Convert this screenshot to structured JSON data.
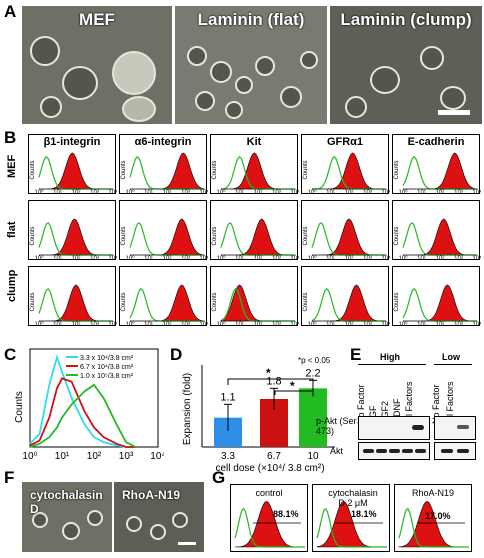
{
  "panels": {
    "A": {
      "label": "A",
      "images": [
        "MEF",
        "Laminin (flat)",
        "Laminin (clump)"
      ]
    },
    "B": {
      "label": "B",
      "columns": [
        "β1-integrin",
        "α6-integrin",
        "Kit",
        "GFRα1",
        "E-cadherin"
      ],
      "rows": [
        "MEF",
        "flat",
        "clump"
      ],
      "axis_ylabel": "Counts",
      "tick_labels": [
        "10⁰",
        "10¹",
        "10²",
        "10³",
        "10⁴"
      ]
    },
    "C": {
      "label": "C",
      "ylabel": "Counts",
      "legend": [
        "3.3 x 10⁴/3.8 cm²",
        "6.7 x 10⁴/3.8 cm²",
        "1.0 x 10⁵/3.8 cm²"
      ],
      "legend_colors": [
        "#33d9f0",
        "#cc1111",
        "#22bb22"
      ],
      "xticks": [
        "10⁰",
        "10¹",
        "10²",
        "10³",
        "10⁴"
      ]
    },
    "D": {
      "label": "D",
      "ylabel": "Expansion (fold)",
      "xlabel": "cell dose (×10⁴/ 3.8 cm²)",
      "significance": [
        "*",
        "*",
        "*p < 0.05"
      ]
    },
    "E": {
      "label": "E",
      "groups": [
        "High",
        "Low"
      ],
      "lanes_high": [
        "No Factor",
        "EGF",
        "FGF2",
        "GDNF",
        "All Factors"
      ],
      "lanes_low": [
        "No Factor",
        "All Factors"
      ],
      "blots": [
        "p-Akt (Ser 473)",
        "Akt"
      ]
    },
    "F": {
      "label": "F",
      "images": [
        "cytochalasin D",
        "RhoA-N19"
      ]
    },
    "G": {
      "label": "G",
      "plots": [
        {
          "title": "control",
          "percent": "88.1%"
        },
        {
          "title": "cytochalasin D 2 μM",
          "percent": "18.1%"
        },
        {
          "title": "RhoA-N19",
          "percent": "17.0%"
        }
      ]
    }
  },
  "chart_data": [
    {
      "type": "bar",
      "title": "",
      "categories": [
        "3.3",
        "6.7",
        "10"
      ],
      "values": [
        1.1,
        1.8,
        2.2
      ],
      "errors": [
        0.5,
        0.4,
        0.3
      ],
      "bar_colors": [
        "#2f8fe8",
        "#cc1111",
        "#22bb22"
      ],
      "data_labels": [
        "1.1",
        "1.8",
        "2.2"
      ],
      "ylabel": "Expansion (fold)",
      "xlabel": "cell dose (×10⁴/ 3.8 cm²)",
      "ylim": [
        0,
        3
      ]
    },
    {
      "type": "line",
      "title": "",
      "xscale": "log",
      "xlim": [
        1,
        10000
      ],
      "x": [
        1,
        2,
        4,
        7,
        10,
        20,
        50,
        100,
        200,
        500,
        1000,
        2000
      ],
      "series": [
        {
          "name": "3.3 x 10⁴/3.8 cm²",
          "values": [
            2,
            8,
            38,
            55,
            46,
            30,
            14,
            6,
            3,
            1,
            0,
            0
          ]
        },
        {
          "name": "6.7 x 10⁴/3.8 cm²",
          "values": [
            1,
            4,
            18,
            36,
            42,
            40,
            22,
            12,
            6,
            2,
            0,
            0
          ]
        },
        {
          "name": "1.0 x 10⁵/3.8 cm²",
          "values": [
            0,
            2,
            6,
            12,
            18,
            26,
            34,
            38,
            30,
            14,
            3,
            0
          ]
        }
      ]
    }
  ]
}
